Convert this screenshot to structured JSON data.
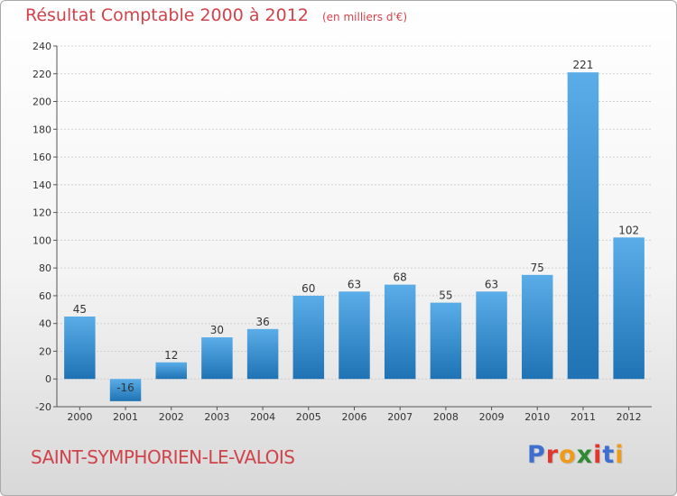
{
  "header": {
    "title": "Résultat Comptable 2000 à 2012",
    "subtitle": "(en milliers d'€)"
  },
  "footer": {
    "commune": "SAINT-SYMPHORIEN-LE-VALOIS",
    "brand": "Proxiti"
  },
  "colors": {
    "bar_top": "#5aade8",
    "bar_bottom": "#1f73b4",
    "title": "#d0434a",
    "brand_letters": [
      "#3d6fd1",
      "#e2352b",
      "#f09a1a",
      "#2e8b34",
      "#e2352b",
      "#3d6fd1",
      "#f09a1a"
    ]
  },
  "chart_data": {
    "type": "bar",
    "title": "Résultat Comptable 2000 à 2012",
    "subtitle": "(en milliers d'€)",
    "categories": [
      "2000",
      "2001",
      "2002",
      "2003",
      "2004",
      "2005",
      "2006",
      "2007",
      "2008",
      "2009",
      "2010",
      "2011",
      "2012"
    ],
    "values": [
      45,
      -16,
      12,
      30,
      36,
      60,
      63,
      68,
      55,
      63,
      75,
      221,
      102
    ],
    "ylim": [
      -20,
      240
    ],
    "yticks": [
      -20,
      0,
      20,
      40,
      60,
      80,
      100,
      120,
      140,
      160,
      180,
      200,
      220,
      240
    ],
    "grid": true,
    "xlabel": "",
    "ylabel": ""
  }
}
